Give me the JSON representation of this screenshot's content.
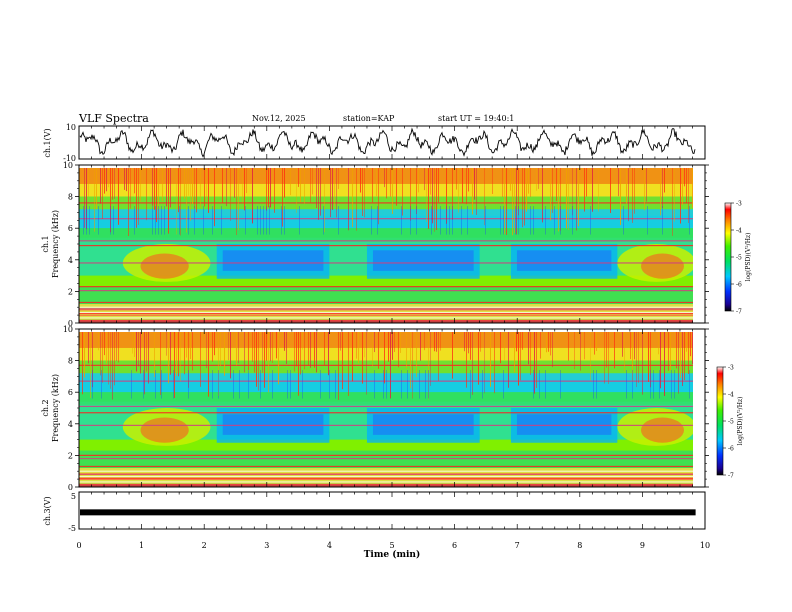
{
  "header": {
    "title": "VLF Spectra",
    "date": "Nov.12, 2025",
    "station": "station=KAP",
    "start": "start UT = 19:40:1"
  },
  "chart_data": [
    {
      "id": "ch1-waveform",
      "type": "line",
      "ylabel": "ch.1(V)",
      "ylim": [
        -10,
        10
      ],
      "yticks": [
        "10",
        "-10"
      ],
      "xlim": [
        0,
        10
      ]
    },
    {
      "id": "ch1-spectrogram",
      "type": "heatmap",
      "ylabel_line1": "ch.1",
      "ylabel_line2": "Frequency (kHz)",
      "xlim": [
        0,
        10
      ],
      "ylim": [
        0,
        10
      ],
      "yticks": [
        "0",
        "2",
        "4",
        "6",
        "8",
        "10"
      ],
      "colorbar": {
        "range": [
          -7,
          -3
        ],
        "ticks": [
          "-3",
          "-4",
          "-5",
          "-6",
          "-7"
        ],
        "label": "log(PSD)(V²/Hz)"
      },
      "data_end_min": 9.85
    },
    {
      "id": "ch2-spectrogram",
      "type": "heatmap",
      "ylabel_line1": "ch.2",
      "ylabel_line2": "Frequency (kHz)",
      "xlim": [
        0,
        10
      ],
      "ylim": [
        0,
        10
      ],
      "yticks": [
        "0",
        "2",
        "4",
        "6",
        "8",
        "10"
      ],
      "colorbar": {
        "range": [
          -7,
          -3
        ],
        "ticks": [
          "-3",
          "-4",
          "-5",
          "-6",
          "-7"
        ],
        "label": "log(PSD)(V²/Hz)"
      },
      "data_end_min": 9.85
    },
    {
      "id": "ch3-waveform",
      "type": "line",
      "ylabel": "ch.3(V)",
      "ylim": [
        -5,
        5
      ],
      "yticks": [
        "5",
        "-5"
      ],
      "xlim": [
        0,
        10
      ],
      "level": -0.5
    }
  ],
  "xaxis": {
    "label": "Time (min)",
    "ticks": [
      "0",
      "1",
      "2",
      "3",
      "4",
      "5",
      "6",
      "7",
      "8",
      "9",
      "10"
    ]
  }
}
